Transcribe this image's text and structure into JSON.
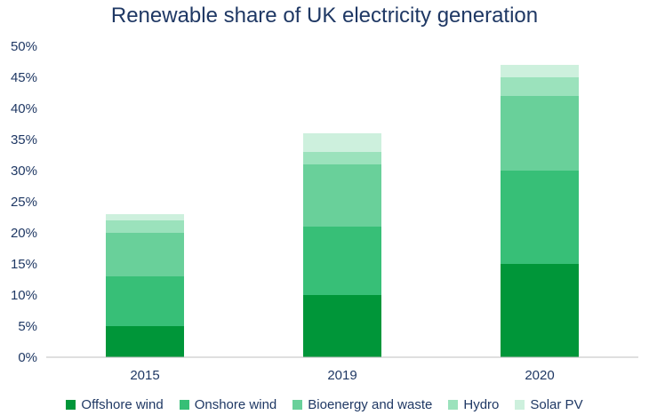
{
  "chart_data": {
    "type": "bar",
    "stacked": true,
    "title": "Renewable share of UK electricity generation",
    "xlabel": "",
    "ylabel": "",
    "categories": [
      "2015",
      "2019",
      "2020"
    ],
    "ylim": [
      0,
      50
    ],
    "yticks": [
      "0%",
      "5%",
      "10%",
      "15%",
      "20%",
      "25%",
      "30%",
      "35%",
      "40%",
      "45%",
      "50%"
    ],
    "grid": false,
    "legend_position": "bottom",
    "series": [
      {
        "name": "Offshore wind",
        "color": "#009639",
        "values": [
          5,
          10,
          15
        ]
      },
      {
        "name": "Onshore wind",
        "color": "#37bf77",
        "values": [
          8,
          11,
          15
        ]
      },
      {
        "name": "Bioenergy and waste",
        "color": "#69d09a",
        "values": [
          7,
          10,
          12
        ]
      },
      {
        "name": "Hydro",
        "color": "#9be2bc",
        "values": [
          2,
          2,
          3
        ]
      },
      {
        "name": "Solar PV",
        "color": "#cdf0dd",
        "values": [
          1,
          3,
          2
        ]
      }
    ]
  }
}
